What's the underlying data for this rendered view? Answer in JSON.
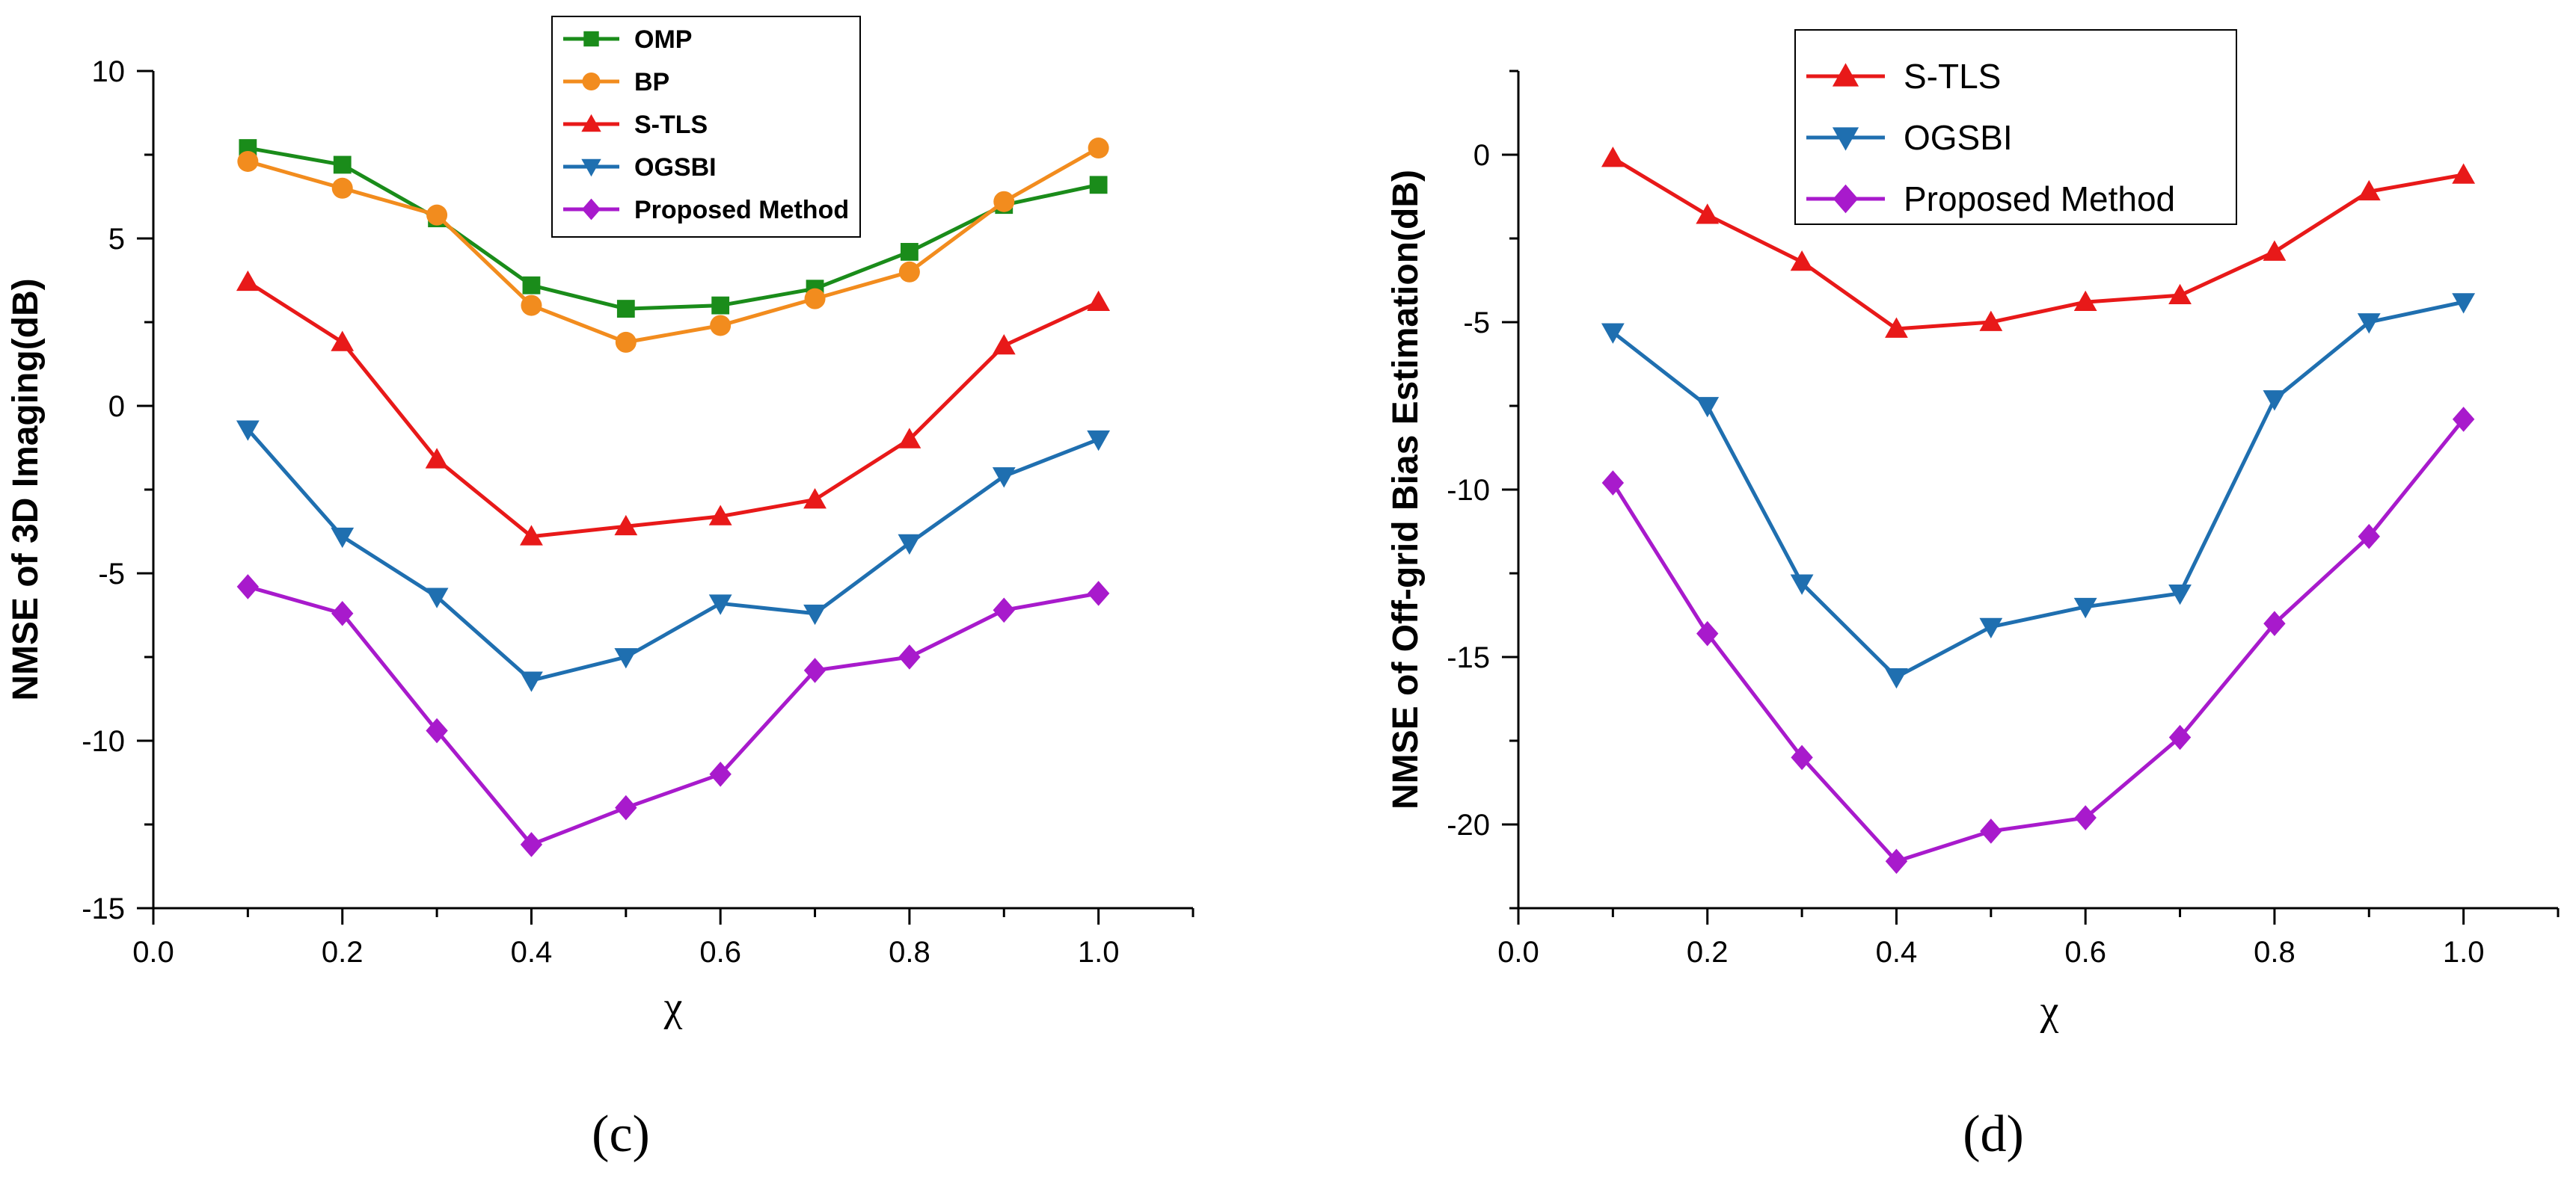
{
  "chart_data": [
    {
      "id": "c",
      "type": "line",
      "panel_label": "(c)",
      "title": "",
      "xlabel": "χ",
      "ylabel": "NMSE of 3D Imaging(dB)",
      "xlim": [
        0.0,
        1.1
      ],
      "ylim": [
        -15,
        10
      ],
      "xticks": [
        0.0,
        0.2,
        0.4,
        0.6,
        0.8,
        1.0
      ],
      "xtick_labels": [
        "0.0",
        "0.2",
        "0.4",
        "0.6",
        "0.8",
        "1.0"
      ],
      "yticks": [
        -15,
        -10,
        -5,
        0,
        5,
        10
      ],
      "ytick_labels": [
        "-15",
        "-10",
        "-5",
        "0",
        "5",
        "10"
      ],
      "grid": false,
      "legend_position": "top-center",
      "x": [
        0.1,
        0.2,
        0.3,
        0.4,
        0.5,
        0.6,
        0.7,
        0.8,
        0.9,
        1.0
      ],
      "series": [
        {
          "name": "OMP",
          "color": "#1a8c1a",
          "marker": "square",
          "values": [
            7.7,
            7.2,
            5.6,
            3.6,
            2.9,
            3.0,
            3.5,
            4.6,
            6.0,
            6.6
          ]
        },
        {
          "name": "BP",
          "color": "#f28c1e",
          "marker": "circle",
          "values": [
            7.3,
            6.5,
            5.7,
            3.0,
            1.9,
            2.4,
            3.2,
            4.0,
            6.1,
            7.7
          ]
        },
        {
          "name": "S-TLS",
          "color": "#e81919",
          "marker": "triangle-up",
          "values": [
            3.7,
            1.9,
            -1.6,
            -3.9,
            -3.6,
            -3.3,
            -2.8,
            -1.0,
            1.8,
            3.1
          ]
        },
        {
          "name": "OGSBI",
          "color": "#1f6fb0",
          "marker": "triangle-down",
          "values": [
            -0.7,
            -3.9,
            -5.7,
            -8.2,
            -7.5,
            -5.9,
            -6.2,
            -4.1,
            -2.1,
            -1.0
          ]
        },
        {
          "name": "Proposed Method",
          "color": "#a81acc",
          "marker": "diamond",
          "values": [
            -5.4,
            -6.2,
            -9.7,
            -13.1,
            -12.0,
            -11.0,
            -7.9,
            -7.5,
            -6.1,
            -5.6
          ]
        }
      ]
    },
    {
      "id": "d",
      "type": "line",
      "panel_label": "(d)",
      "title": "",
      "xlabel": "χ",
      "ylabel": "NMSE of Off-grid Bias Estimation(dB)",
      "xlim": [
        0.0,
        1.1
      ],
      "ylim": [
        -22.5,
        2.5
      ],
      "xticks": [
        0.0,
        0.2,
        0.4,
        0.6,
        0.8,
        1.0
      ],
      "xtick_labels": [
        "0.0",
        "0.2",
        "0.4",
        "0.6",
        "0.8",
        "1.0"
      ],
      "yticks": [
        -20,
        -15,
        -10,
        -5,
        0
      ],
      "ytick_labels": [
        "-20",
        "-15",
        "-10",
        "-5",
        "0"
      ],
      "grid": false,
      "legend_position": "top-center",
      "x": [
        0.1,
        0.2,
        0.3,
        0.4,
        0.5,
        0.6,
        0.7,
        0.8,
        0.9,
        1.0
      ],
      "series": [
        {
          "name": "S-TLS",
          "color": "#e81919",
          "marker": "triangle-up",
          "values": [
            -0.1,
            -1.8,
            -3.2,
            -5.2,
            -5.0,
            -4.4,
            -4.2,
            -2.9,
            -1.1,
            -0.6
          ]
        },
        {
          "name": "OGSBI",
          "color": "#1f6fb0",
          "marker": "triangle-down",
          "values": [
            -5.3,
            -7.5,
            -12.8,
            -15.6,
            -14.1,
            -13.5,
            -13.1,
            -7.3,
            -5.0,
            -4.4
          ]
        },
        {
          "name": "Proposed Method",
          "color": "#a81acc",
          "marker": "diamond",
          "values": [
            -9.8,
            -14.3,
            -18.0,
            -21.1,
            -20.2,
            -19.8,
            -17.4,
            -14.0,
            -11.4,
            -7.9
          ]
        }
      ]
    }
  ]
}
